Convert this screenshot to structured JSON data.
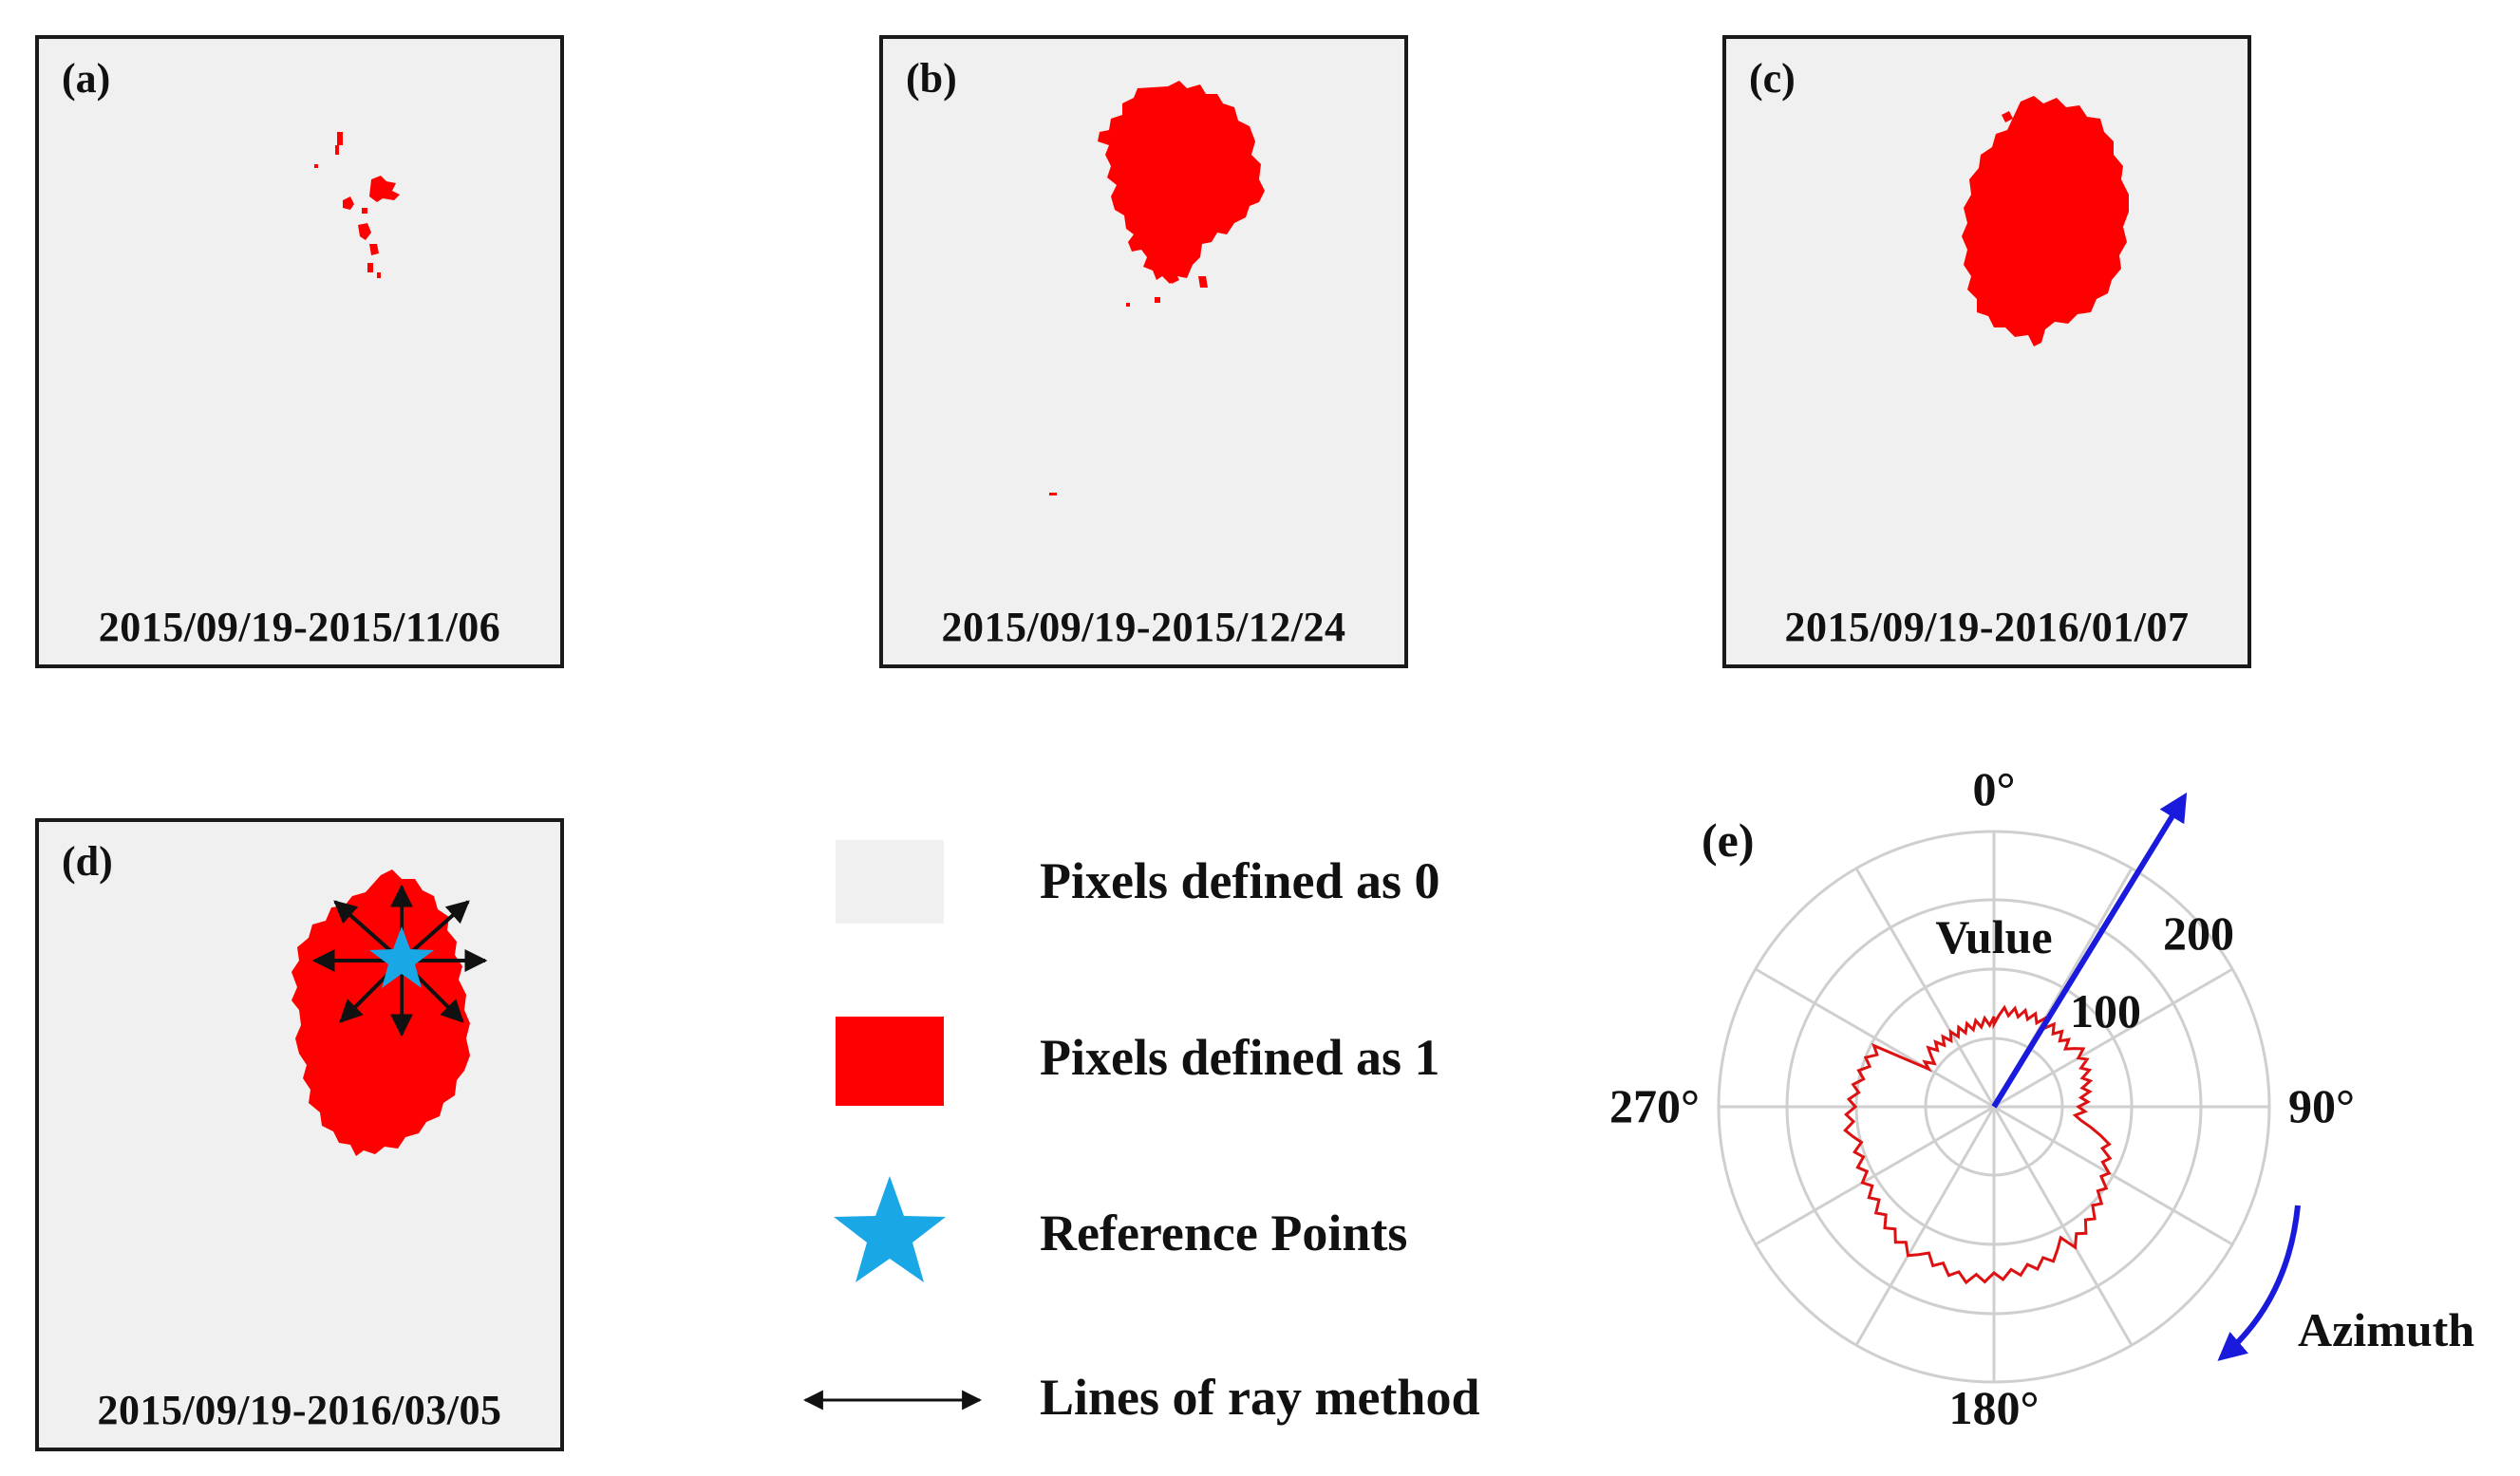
{
  "panels": [
    {
      "label": "(a)",
      "date": "2015/09/19-2015/11/06"
    },
    {
      "label": "(b)",
      "date": "2015/09/19-2015/12/24"
    },
    {
      "label": "(c)",
      "date": "2015/09/19-2016/01/07"
    },
    {
      "label": "(d)",
      "date": "2015/09/19-2016/03/05"
    }
  ],
  "legend": {
    "zero": "Pixels defined as 0",
    "one": "Pixels defined as 1",
    "ref": "Reference Points",
    "ray": "Lines of ray method"
  },
  "polar": {
    "label": "(e)",
    "radial_title": "Vulue",
    "ticks": [
      "100",
      "200"
    ],
    "angles": {
      "n": "0°",
      "e": "90°",
      "s": "180°",
      "w": "270°"
    },
    "azimuth": "Azimuth"
  },
  "colors": {
    "pixel_zero": "#f0f0f0",
    "pixel_one": "#ff0000",
    "reference": "#1aa7e6",
    "arrow": "#1a1adc",
    "curve": "#dd1111",
    "grid": "#cfcfcf"
  }
}
